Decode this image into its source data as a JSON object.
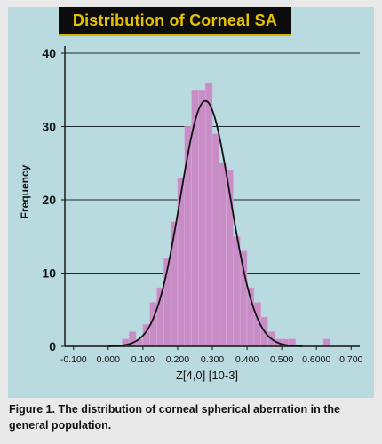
{
  "caption": "Figure 1. The distribution of corneal spherical aberration in the general population.",
  "colors": {
    "background": "#e9e9e9",
    "panel": "#b9dbe0",
    "bar": "#c88dc6",
    "curve": "#111111",
    "title_bg": "#0c0c0c",
    "title_text": "#e7c200"
  },
  "chart_data": {
    "type": "bar",
    "title": "Distribution of Corneal SA",
    "xlabel": "Z[4,0] [10-3]",
    "ylabel": "Frequency",
    "xlim": [
      -0.125,
      0.725
    ],
    "ylim": [
      0,
      40
    ],
    "grid": true,
    "x_ticks": [
      -0.1,
      0.0,
      0.1,
      0.2,
      0.3,
      0.4,
      0.5,
      0.6,
      0.7
    ],
    "x_tick_labels": [
      "-0.100",
      "0.000",
      "0.100",
      "0.200",
      "0.300",
      "0.400",
      "0.500",
      "0.6000",
      "0.700"
    ],
    "y_ticks": [
      0,
      10,
      20,
      30,
      40
    ],
    "y_tick_labels": [
      "0",
      "10",
      "20",
      "30",
      "40"
    ],
    "bin_width": 0.02,
    "bin_starts": [
      0.04,
      0.06,
      0.08,
      0.1,
      0.12,
      0.14,
      0.16,
      0.18,
      0.2,
      0.22,
      0.24,
      0.26,
      0.28,
      0.3,
      0.32,
      0.34,
      0.36,
      0.38,
      0.4,
      0.42,
      0.44,
      0.46,
      0.48,
      0.5,
      0.52,
      0.54,
      0.56,
      0.58,
      0.6,
      0.62
    ],
    "frequencies": [
      1,
      2,
      1,
      3,
      6,
      8,
      12,
      17,
      23,
      30,
      35,
      35,
      36,
      29,
      25,
      24,
      15,
      13,
      8,
      6,
      4,
      2,
      1,
      1,
      1,
      0,
      0,
      0,
      0,
      1
    ],
    "fit_curve": {
      "type": "normal",
      "mean": 0.28,
      "sd": 0.072,
      "peak": 33.5
    }
  }
}
